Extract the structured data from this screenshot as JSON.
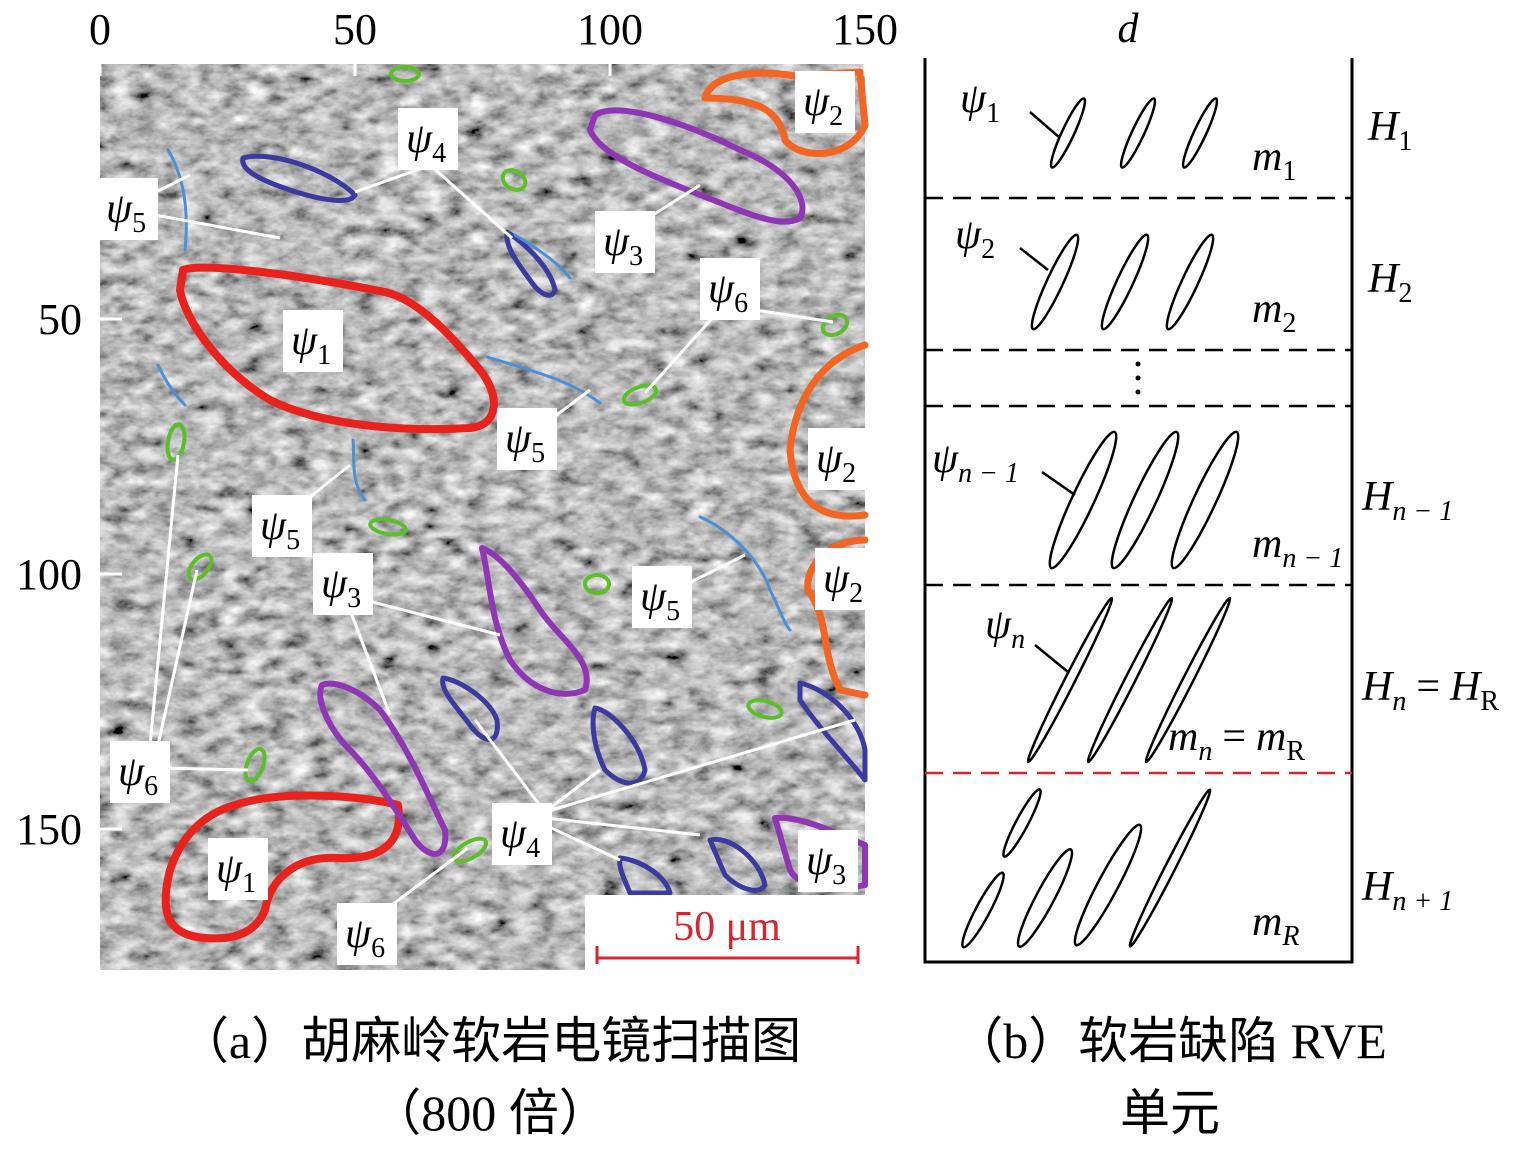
{
  "panel_a": {
    "x_axis": {
      "ticks": [
        0,
        50,
        100,
        150
      ]
    },
    "y_axis": {
      "ticks": [
        50,
        100,
        150
      ]
    },
    "labels": [
      {
        "main": "ψ",
        "sub": "2"
      },
      {
        "main": "ψ",
        "sub": "4"
      },
      {
        "main": "ψ",
        "sub": "5"
      },
      {
        "main": "ψ",
        "sub": "3"
      },
      {
        "main": "ψ",
        "sub": "6"
      },
      {
        "main": "ψ",
        "sub": "1"
      },
      {
        "main": "ψ",
        "sub": "5"
      },
      {
        "main": "ψ",
        "sub": "2"
      },
      {
        "main": "ψ",
        "sub": "5"
      },
      {
        "main": "ψ",
        "sub": "3"
      },
      {
        "main": "ψ",
        "sub": "2"
      },
      {
        "main": "ψ",
        "sub": "5"
      },
      {
        "main": "ψ",
        "sub": "6"
      },
      {
        "main": "ψ",
        "sub": "4"
      },
      {
        "main": "ψ",
        "sub": "1"
      },
      {
        "main": "ψ",
        "sub": "3"
      },
      {
        "main": "ψ",
        "sub": "6"
      }
    ],
    "scale_bar": "50 μm",
    "caption": [
      "（a）胡麻岭软岩电镜扫描图",
      "（800 倍）"
    ]
  },
  "panel_b": {
    "column_label": "d",
    "defect_labels": [
      {
        "main": "ψ",
        "sub": "1"
      },
      {
        "main": "ψ",
        "sub": "2"
      },
      {
        "main": "ψ",
        "sub": "n − 1"
      },
      {
        "main": "ψ",
        "sub": "n"
      }
    ],
    "layer_labels": [
      {
        "main": "H",
        "sub": "1"
      },
      {
        "main": "H",
        "sub": "2"
      },
      {
        "main": "H",
        "sub": "n − 1"
      },
      {
        "main": "H",
        "sub": "n",
        "relation": "=",
        "rhs": "H",
        "rhs_sub": "R"
      },
      {
        "main": "H",
        "sub": "n + 1"
      }
    ],
    "modulus_labels": [
      {
        "main": "m",
        "sub": "1"
      },
      {
        "main": "m",
        "sub": "2"
      },
      {
        "main": "m",
        "sub": "n − 1"
      },
      {
        "main": "m",
        "sub": "n",
        "relation": "=",
        "rhs": "m",
        "rhs_sub": "R"
      },
      {
        "main": "m",
        "sub": "R"
      }
    ],
    "caption": [
      "（b）软岩缺陷 RVE",
      "单元"
    ]
  }
}
